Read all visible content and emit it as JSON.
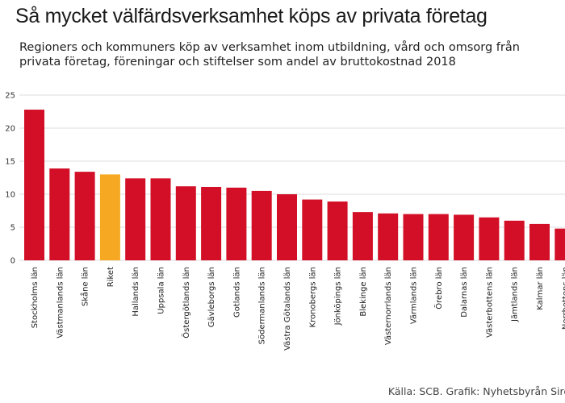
{
  "header": {
    "title": "Så mycket välfärdsverksamhet köps av privata företag",
    "subtitle": "Regioners och kommuners köp av verksamhet inom utbildning, vård och omsorg från privata företag, föreningar och stiftelser som andel av bruttokostnad 2018"
  },
  "footer": {
    "source": "Källa: SCB. Grafik: Nyhetsbyrån Siren"
  },
  "colors": {
    "bar": "#d20f26",
    "highlight": "#f6a823",
    "grid": "#dddddd"
  },
  "chart_data": {
    "type": "bar",
    "title": "Så mycket välfärdsverksamhet köps av privata företag",
    "subtitle": "Regioners och kommuners köp av verksamhet inom utbildning, vård och omsorg från privata företag, föreningar och stiftelser som andel av bruttokostnad 2018",
    "xlabel": "",
    "ylabel": "",
    "ylim": [
      0,
      25
    ],
    "yticks": [
      0,
      5,
      10,
      15,
      20,
      25
    ],
    "grid": true,
    "legend": "none",
    "highlight_category": "Riket",
    "categories": [
      "Stockholms län",
      "Västmanlands län",
      "Skåne län",
      "Riket",
      "Hallands län",
      "Uppsala län",
      "Östergötlands län",
      "Gävleborgs län",
      "Gotlands län",
      "Södermanlands län",
      "Västra Götalands län",
      "Kronobergs län",
      "Jönköpings län",
      "Blekinge län",
      "Västernorrlands län",
      "Värmlands län",
      "Örebro län",
      "Dalarnas län",
      "Västerbottens län",
      "Jämtlands län",
      "Kalmar län",
      "Norrbottens län"
    ],
    "values": [
      22.8,
      13.9,
      13.4,
      13.0,
      12.4,
      12.4,
      11.2,
      11.1,
      11.0,
      10.5,
      10.0,
      9.2,
      8.9,
      7.3,
      7.1,
      7.0,
      7.0,
      6.9,
      6.5,
      6.0,
      5.5,
      4.8
    ]
  }
}
